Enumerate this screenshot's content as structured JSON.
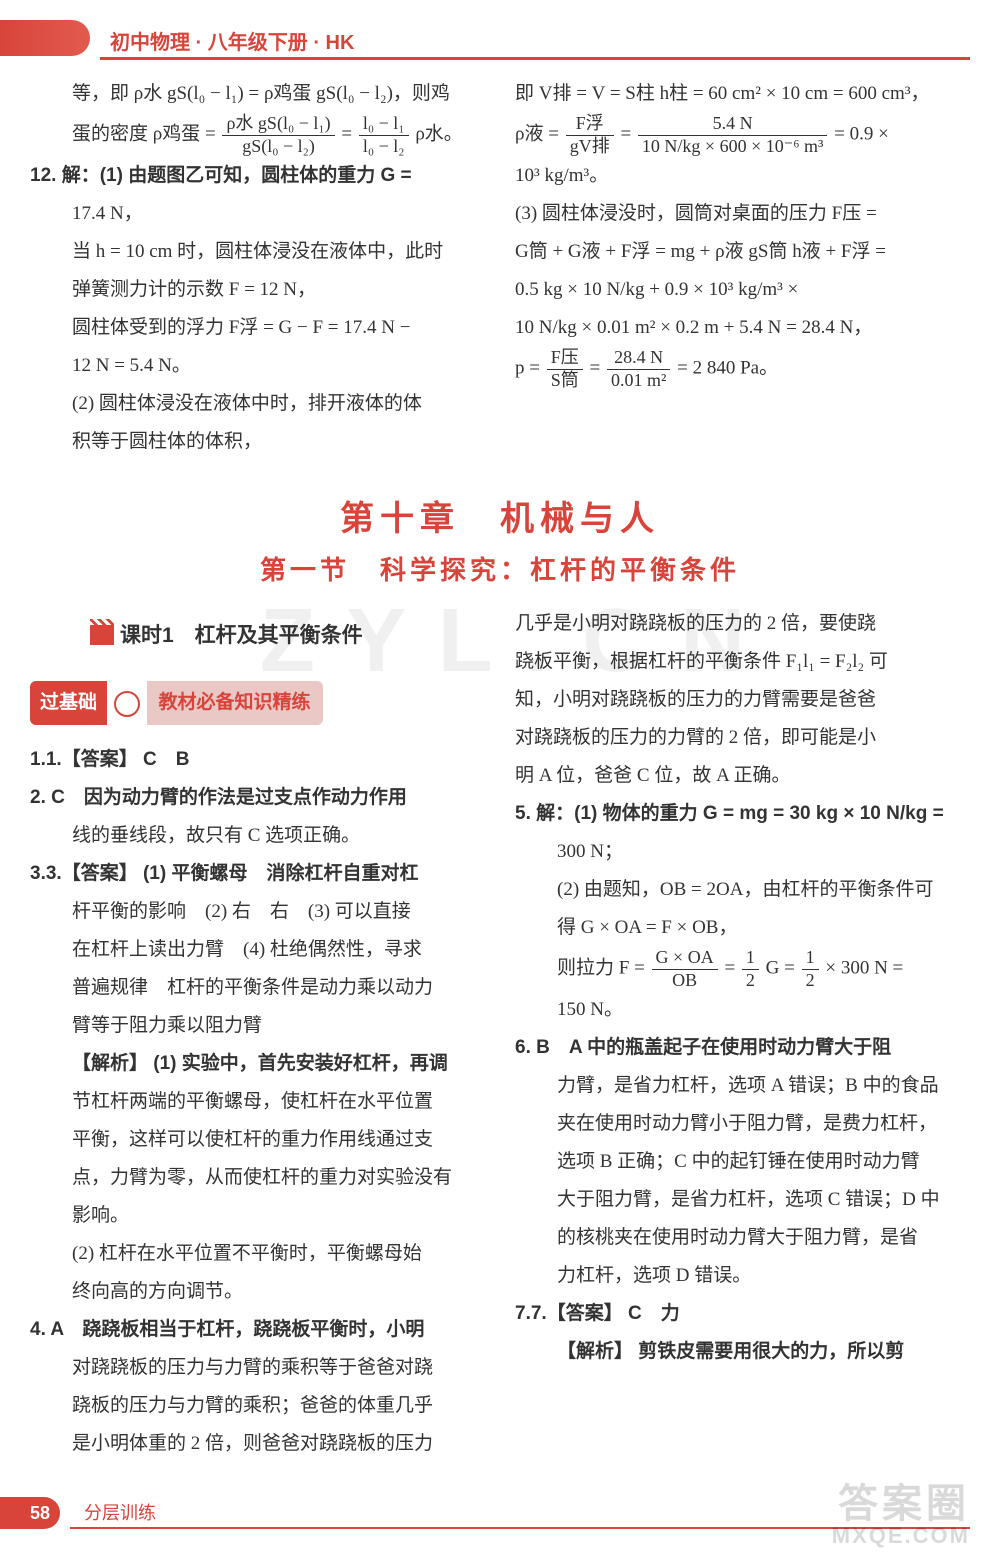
{
  "header": {
    "title": "初中物理 · 八年级下册 · HK"
  },
  "upper": {
    "left": {
      "p1": "等，即 ρ水 gS(l₀ − l₁) = ρ鸡蛋 gS(l₀ − l₂)，则鸡",
      "p2_pre": "蛋的密度 ρ鸡蛋 = ",
      "frac1_num": "ρ水 gS(l₀ − l₁)",
      "frac1_den": "gS(l₀ − l₂)",
      "frac2_num": "l₀ − l₁",
      "frac2_den": "l₀ − l₂",
      "p2_post": " ρ水。",
      "q12_a": "12. 解：(1) 由题图乙可知，圆柱体的重力 G =",
      "q12_b": "17.4 N，",
      "q12_c": "当 h = 10 cm 时，圆柱体浸没在液体中，此时",
      "q12_d": "弹簧测力计的示数 F = 12 N，",
      "q12_e": "圆柱体受到的浮力 F浮 = G − F = 17.4 N −",
      "q12_f": "12 N = 5.4 N。",
      "q12_g": "(2) 圆柱体浸没在液体中时，排开液体的体",
      "q12_h": "积等于圆柱体的体积，"
    },
    "right": {
      "r1": "即 V排 = V = S柱 h柱 = 60 cm² × 10 cm = 600 cm³，",
      "r2_pre": "ρ液 = ",
      "r2_f1n": "F浮",
      "r2_f1d": "gV排",
      "r2_f2n": "5.4 N",
      "r2_f2d": "10 N/kg × 600 × 10⁻⁶ m³",
      "r2_post": " = 0.9 ×",
      "r3": "10³ kg/m³。",
      "r4": "(3) 圆柱体浸没时，圆筒对桌面的压力 F压 =",
      "r5": "G筒 + G液 + F浮 = mg + ρ液 gS筒 h液 + F浮 =",
      "r6": "0.5 kg × 10 N/kg + 0.9 × 10³ kg/m³ ×",
      "r7": "10 N/kg × 0.01 m² × 0.2 m + 5.4 N = 28.4 N，",
      "r8_pre": "p = ",
      "r8_f1n": "F压",
      "r8_f1d": "S筒",
      "r8_f2n": "28.4 N",
      "r8_f2d": "0.01 m²",
      "r8_post": " = 2 840 Pa。"
    }
  },
  "chapter": "第十章　机械与人",
  "section": "第一节　科学探究：杠杆的平衡条件",
  "lesson": "课时1　杠杆及其平衡条件",
  "practice": {
    "label1": "过基础",
    "label2": "教材必备知识精练"
  },
  "lower": {
    "left": {
      "a1": "1.【答案】 C　B",
      "a2": "2. C　因为动力臂的作法是过支点作动力作用",
      "a2b": "线的垂线段，故只有 C 选项正确。",
      "a3": "3.【答案】 (1) 平衡螺母　消除杠杆自重对杠",
      "a3b": "杆平衡的影响　(2) 右　右　(3) 可以直接",
      "a3c": "在杠杆上读出力臂　(4) 杜绝偶然性，寻求",
      "a3d": "普遍规律　杠杆的平衡条件是动力乘以动力",
      "a3e": "臂等于阻力乘以阻力臂",
      "a3f": "【解析】 (1) 实验中，首先安装好杠杆，再调",
      "a3g": "节杠杆两端的平衡螺母，使杠杆在水平位置",
      "a3h": "平衡，这样可以使杠杆的重力作用线通过支",
      "a3i": "点，力臂为零，从而使杠杆的重力对实验没有",
      "a3j": "影响。",
      "a3k": "(2) 杠杆在水平位置不平衡时，平衡螺母始",
      "a3l": "终向高的方向调节。",
      "a4": "4. A　跷跷板相当于杠杆，跷跷板平衡时，小明",
      "a4b": "对跷跷板的压力与力臂的乘积等于爸爸对跷",
      "a4c": "跷板的压力与力臂的乘积；爸爸的体重几乎",
      "a4d": "是小明体重的 2 倍，则爸爸对跷跷板的压力"
    },
    "right": {
      "b1": "几乎是小明对跷跷板的压力的 2 倍，要使跷",
      "b2": "跷板平衡，根据杠杆的平衡条件 F₁l₁ = F₂l₂ 可",
      "b3": "知，小明对跷跷板的压力的力臂需要是爸爸",
      "b4": "对跷跷板的压力的力臂的 2 倍，即可能是小",
      "b5": "明 A 位，爸爸 C 位，故 A 正确。",
      "c1": "5. 解：(1) 物体的重力 G = mg = 30 kg × 10 N/kg =",
      "c2": "300 N；",
      "c3": "(2) 由题知，OB = 2OA，由杠杆的平衡条件可",
      "c4": "得 G × OA = F × OB，",
      "c5_pre": "则拉力 F = ",
      "c5_f1n": "G × OA",
      "c5_f1d": "OB",
      "c5_mid": " = ",
      "c5_f2n": "1",
      "c5_f2d": "2",
      "c5_mid2": " G = ",
      "c5_f3n": "1",
      "c5_f3d": "2",
      "c5_post": " × 300 N =",
      "c6": "150 N。",
      "d1": "6. B　A 中的瓶盖起子在使用时动力臂大于阻",
      "d2": "力臂，是省力杠杆，选项 A 错误；B 中的食品",
      "d3": "夹在使用时动力臂小于阻力臂，是费力杠杆，",
      "d4": "选项 B 正确；C 中的起钉锤在使用时动力臂",
      "d5": "大于阻力臂，是省力杠杆，选项 C 错误；D 中",
      "d6": "的核桃夹在使用时动力臂大于阻力臂，是省",
      "d7": "力杠杆，选项 D 错误。",
      "e1": "7.【答案】 C　力",
      "e2": "【解析】 剪铁皮需要用很大的力؜，所以剪"
    }
  },
  "footer": {
    "page": "58",
    "label": "分层训练"
  },
  "watermark1": "Z Y L . C N",
  "corner_logo": "答案圈",
  "corner_url": "MXQE.COM"
}
